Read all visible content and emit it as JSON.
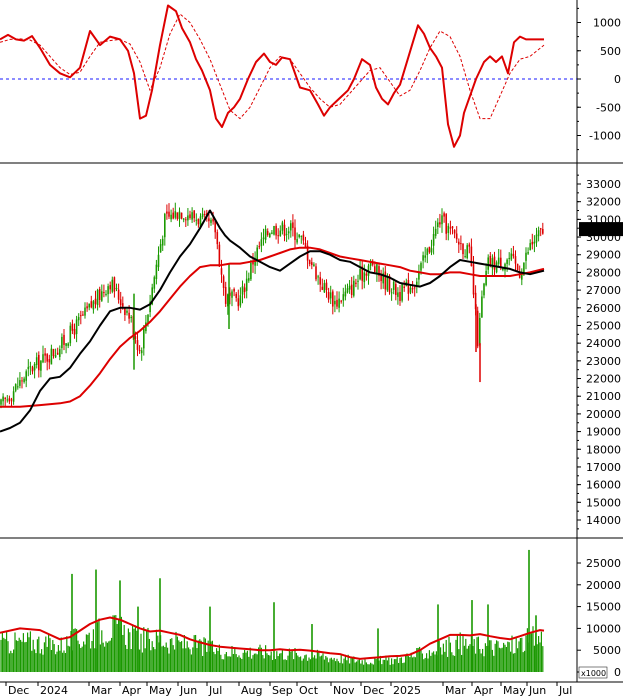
{
  "chart_data": [
    {
      "type": "line",
      "panel": "oscillator",
      "y_ticks": [
        1000,
        500,
        0,
        -500,
        -1000
      ],
      "ylim": [
        -1400,
        1400
      ],
      "zero_line": "dashed blue",
      "series": [
        {
          "color": "#dd0000",
          "style": "solid",
          "x": [
            0,
            8,
            16,
            24,
            32,
            40,
            50,
            60,
            70,
            80,
            90,
            100,
            110,
            120,
            128,
            134,
            140,
            146,
            152,
            160,
            168,
            176,
            182,
            190,
            196,
            202,
            210,
            216,
            222,
            228,
            234,
            240,
            248,
            256,
            264,
            270,
            276,
            282,
            290,
            300,
            310,
            318,
            324,
            330,
            336,
            342,
            348,
            354,
            362,
            370,
            376,
            382,
            388,
            394,
            400,
            406,
            412,
            418,
            424,
            430,
            436,
            442,
            448,
            454,
            460,
            464,
            468,
            472,
            476,
            480,
            484,
            490,
            496,
            502,
            508,
            514,
            520,
            526,
            532,
            538,
            544
          ],
          "y": [
            700,
            780,
            700,
            680,
            760,
            550,
            250,
            100,
            30,
            200,
            850,
            600,
            750,
            700,
            500,
            100,
            -700,
            -650,
            -200,
            600,
            1300,
            1200,
            900,
            650,
            350,
            150,
            -200,
            -700,
            -850,
            -600,
            -500,
            -350,
            0,
            300,
            450,
            300,
            250,
            380,
            350,
            -150,
            -200,
            -450,
            -650,
            -500,
            -400,
            -300,
            -200,
            0,
            350,
            250,
            -150,
            -350,
            -450,
            -250,
            -100,
            250,
            600,
            950,
            800,
            550,
            400,
            200,
            -800,
            -1200,
            -1000,
            -600,
            -400,
            -200,
            0,
            150,
            300,
            400,
            300,
            400,
            100,
            650,
            750,
            700,
            700,
            700,
            700
          ]
        },
        {
          "color": "#dd0000",
          "style": "dashed",
          "x": [
            0,
            10,
            20,
            30,
            40,
            50,
            60,
            70,
            80,
            90,
            100,
            110,
            120,
            130,
            140,
            150,
            160,
            170,
            180,
            190,
            200,
            210,
            220,
            230,
            240,
            250,
            260,
            270,
            280,
            290,
            300,
            310,
            320,
            330,
            340,
            350,
            360,
            370,
            380,
            390,
            400,
            410,
            420,
            430,
            440,
            450,
            460,
            470,
            480,
            490,
            500,
            510,
            520,
            530,
            544
          ],
          "y": [
            650,
            700,
            710,
            690,
            600,
            400,
            200,
            80,
            120,
            400,
            650,
            680,
            700,
            620,
            300,
            -200,
            200,
            800,
            1150,
            1000,
            700,
            350,
            -100,
            -550,
            -700,
            -500,
            -150,
            200,
            400,
            350,
            100,
            -150,
            -350,
            -500,
            -450,
            -250,
            -50,
            150,
            200,
            -50,
            -300,
            -200,
            150,
            550,
            850,
            750,
            400,
            -200,
            -700,
            -700,
            -300,
            100,
            350,
            400,
            600
          ]
        }
      ]
    },
    {
      "type": "candlestick",
      "panel": "price",
      "y_ticks": [
        33000,
        32000,
        31000,
        30000,
        29000,
        28000,
        27000,
        26000,
        25000,
        24000,
        23000,
        22000,
        21000,
        20000,
        19000,
        18000,
        17000,
        16000,
        15000,
        14000
      ],
      "ylim": [
        13300,
        33600
      ],
      "last_price_label": "30450.00",
      "price_path": {
        "x": [
          0,
          30,
          60,
          90,
          110,
          130,
          140,
          150,
          165,
          180,
          200,
          215,
          225,
          240,
          255,
          270,
          290,
          300,
          320,
          335,
          350,
          370,
          385,
          400,
          415,
          430,
          440,
          455,
          470,
          478,
          482,
          488,
          495,
          510,
          520,
          530,
          544
        ],
        "close": [
          20400,
          22500,
          23800,
          26000,
          27500,
          25500,
          23500,
          26500,
          31000,
          31500,
          31000,
          30500,
          26500,
          26500,
          29000,
          30500,
          30500,
          30000,
          27500,
          26300,
          27000,
          28500,
          27500,
          26800,
          27500,
          29500,
          31000,
          30000,
          29000,
          24000,
          26500,
          28500,
          28500,
          28800,
          28000,
          29500,
          30450
        ]
      },
      "series": [
        {
          "name": "MA-black",
          "color": "#000000",
          "x": [
            0,
            10,
            20,
            30,
            40,
            50,
            60,
            70,
            80,
            90,
            100,
            110,
            120,
            130,
            140,
            150,
            160,
            170,
            180,
            190,
            200,
            210,
            220,
            225,
            230,
            240,
            250,
            260,
            270,
            280,
            290,
            300,
            310,
            320,
            330,
            340,
            350,
            360,
            370,
            380,
            390,
            400,
            410,
            420,
            430,
            440,
            450,
            460,
            470,
            480,
            490,
            500,
            510,
            520,
            530,
            544
          ],
          "values": [
            19000,
            19200,
            19500,
            20200,
            21300,
            22000,
            22100,
            22600,
            23400,
            24100,
            25000,
            25800,
            26000,
            26000,
            25900,
            26200,
            27000,
            28000,
            28900,
            29600,
            30500,
            31500,
            30500,
            30100,
            29800,
            29400,
            28900,
            28600,
            28300,
            28100,
            28500,
            28900,
            29200,
            29200,
            29000,
            28700,
            28600,
            28300,
            28000,
            27900,
            27700,
            27400,
            27300,
            27200,
            27400,
            27800,
            28300,
            28700,
            28600,
            28500,
            28400,
            28300,
            28200,
            28000,
            27900,
            28100
          ]
        },
        {
          "name": "MA-red",
          "color": "#dd0000",
          "x": [
            0,
            20,
            40,
            60,
            70,
            80,
            90,
            100,
            110,
            120,
            130,
            140,
            150,
            160,
            170,
            180,
            190,
            200,
            210,
            220,
            230,
            240,
            250,
            260,
            270,
            280,
            290,
            300,
            310,
            320,
            330,
            340,
            350,
            360,
            370,
            380,
            390,
            400,
            410,
            420,
            430,
            440,
            450,
            460,
            470,
            480,
            490,
            500,
            510,
            520,
            530,
            544
          ],
          "values": [
            20400,
            20400,
            20500,
            20600,
            20700,
            21000,
            21600,
            22300,
            23100,
            23800,
            24300,
            24700,
            25200,
            25800,
            26500,
            27200,
            27800,
            28300,
            28400,
            28400,
            28500,
            28500,
            28600,
            28700,
            28900,
            29100,
            29300,
            29400,
            29400,
            29300,
            29100,
            28900,
            28800,
            28700,
            28600,
            28500,
            28400,
            28300,
            28100,
            28000,
            27900,
            27900,
            28000,
            28000,
            27900,
            27800,
            27800,
            27800,
            27800,
            27900,
            28000,
            28200
          ]
        }
      ]
    },
    {
      "type": "bar",
      "panel": "volume",
      "unit_label": "x1000",
      "y_ticks": [
        25000,
        20000,
        15000,
        10000,
        5000,
        0
      ],
      "ylim": [
        0,
        28000
      ],
      "volume_envelope": {
        "x": [
          0,
          30,
          60,
          90,
          110,
          120,
          140,
          160,
          180,
          200,
          215,
          230,
          260,
          290,
          320,
          345,
          370,
          395,
          420,
          445,
          460,
          480,
          500,
          520,
          530,
          544
        ],
        "values": [
          7000,
          7500,
          6500,
          9000,
          11000,
          10000,
          8000,
          8000,
          7000,
          6500,
          5500,
          5000,
          5000,
          4500,
          4000,
          3200,
          2800,
          3000,
          4500,
          6000,
          7000,
          6500,
          6000,
          7000,
          8000,
          8500
        ]
      },
      "spikes": [
        {
          "x": 72,
          "value": 22500
        },
        {
          "x": 96,
          "value": 23500
        },
        {
          "x": 120,
          "value": 21000
        },
        {
          "x": 160,
          "value": 21500
        },
        {
          "x": 138,
          "value": 15000
        },
        {
          "x": 210,
          "value": 15000
        },
        {
          "x": 274,
          "value": 16000
        },
        {
          "x": 312,
          "value": 11000
        },
        {
          "x": 378,
          "value": 10000
        },
        {
          "x": 438,
          "value": 15500
        },
        {
          "x": 472,
          "value": 16500
        },
        {
          "x": 488,
          "value": 15500
        },
        {
          "x": 529,
          "value": 28000
        },
        {
          "x": 536,
          "value": 13000
        }
      ],
      "series": [
        {
          "name": "Volume-MA",
          "color": "#dd0000",
          "x": [
            0,
            20,
            40,
            60,
            70,
            80,
            90,
            100,
            110,
            120,
            130,
            140,
            150,
            160,
            170,
            180,
            190,
            200,
            210,
            220,
            230,
            240,
            250,
            260,
            270,
            280,
            290,
            300,
            310,
            320,
            330,
            340,
            350,
            360,
            370,
            380,
            390,
            400,
            410,
            420,
            430,
            440,
            450,
            460,
            470,
            480,
            490,
            500,
            510,
            520,
            530,
            540,
            544
          ],
          "values": [
            9000,
            10000,
            9600,
            7500,
            8000,
            9500,
            11000,
            12000,
            12500,
            12000,
            11000,
            10000,
            9300,
            9500,
            9000,
            8500,
            7500,
            6800,
            6200,
            5800,
            5600,
            5400,
            5200,
            5000,
            5000,
            5200,
            5000,
            5100,
            4900,
            4600,
            4300,
            4100,
            3400,
            3000,
            3200,
            3400,
            3600,
            3700,
            4000,
            5000,
            6500,
            7500,
            8500,
            8500,
            8400,
            8700,
            8200,
            7800,
            7500,
            8200,
            9000,
            9600,
            9500
          ]
        }
      ]
    }
  ],
  "x_axis": {
    "labels": [
      {
        "text": "Dec",
        "x": 6
      },
      {
        "text": "2024",
        "x": 38
      },
      {
        "text": "Mar",
        "x": 89
      },
      {
        "text": "Apr",
        "x": 120
      },
      {
        "text": "May",
        "x": 147
      },
      {
        "text": "Jun",
        "x": 178
      },
      {
        "text": "Jul",
        "x": 207
      },
      {
        "text": "Aug",
        "x": 239
      },
      {
        "text": "Sep",
        "x": 270
      },
      {
        "text": "Oct",
        "x": 297
      },
      {
        "text": "Nov",
        "x": 331
      },
      {
        "text": "Dec",
        "x": 361
      },
      {
        "text": "2025",
        "x": 391
      },
      {
        "text": "Mar",
        "x": 443
      },
      {
        "text": "Apr",
        "x": 472
      },
      {
        "text": "May",
        "x": 501
      },
      {
        "text": "Jun",
        "x": 527
      },
      {
        "text": "Jul",
        "x": 557
      }
    ]
  }
}
